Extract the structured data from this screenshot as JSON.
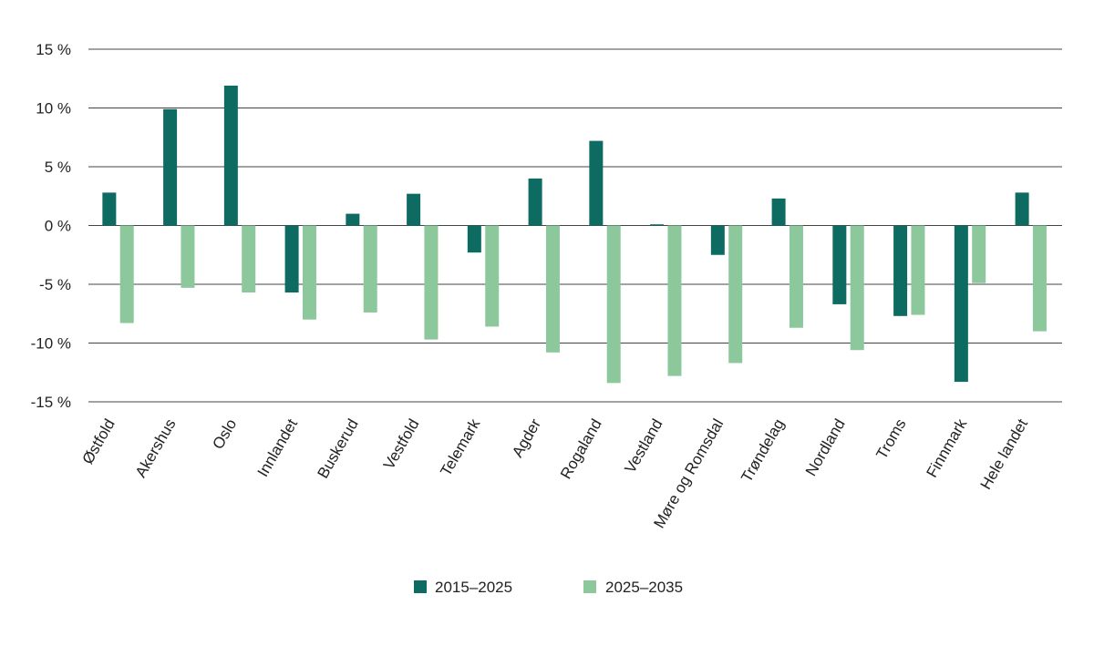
{
  "chart_data": {
    "type": "bar",
    "title": "",
    "xlabel": "",
    "ylabel": "",
    "ylim": [
      -15,
      15
    ],
    "yticks": [
      15,
      10,
      5,
      0,
      -5,
      -10,
      -15
    ],
    "ytick_labels": [
      "15 %",
      "10 %",
      "5 %",
      "0 %",
      "-5 %",
      "-10 %",
      "-15 %"
    ],
    "grid": true,
    "legend_position": "bottom-center",
    "categories": [
      "Østfold",
      "Akershus",
      "Oslo",
      "Innlandet",
      "Buskerud",
      "Vestfold",
      "Telemark",
      "Agder",
      "Rogaland",
      "Vestland",
      "Møre og Romsdal",
      "Trøndelag",
      "Nordland",
      "Troms",
      "Finnmark",
      "Hele landet"
    ],
    "series": [
      {
        "name": "2015–2025",
        "color": "#0e6b62",
        "values": [
          2.8,
          9.9,
          11.9,
          -5.7,
          1.0,
          2.7,
          -2.3,
          4.0,
          7.2,
          0.1,
          -2.5,
          2.3,
          -6.7,
          -7.7,
          -13.3,
          2.8
        ]
      },
      {
        "name": "2025–2035",
        "color": "#8cc89b",
        "values": [
          -8.3,
          -5.3,
          -5.7,
          -8.0,
          -7.4,
          -9.7,
          -8.6,
          -10.8,
          -13.4,
          -12.8,
          -11.7,
          -8.7,
          -10.6,
          -7.6,
          -4.9,
          -9.0
        ]
      }
    ]
  }
}
